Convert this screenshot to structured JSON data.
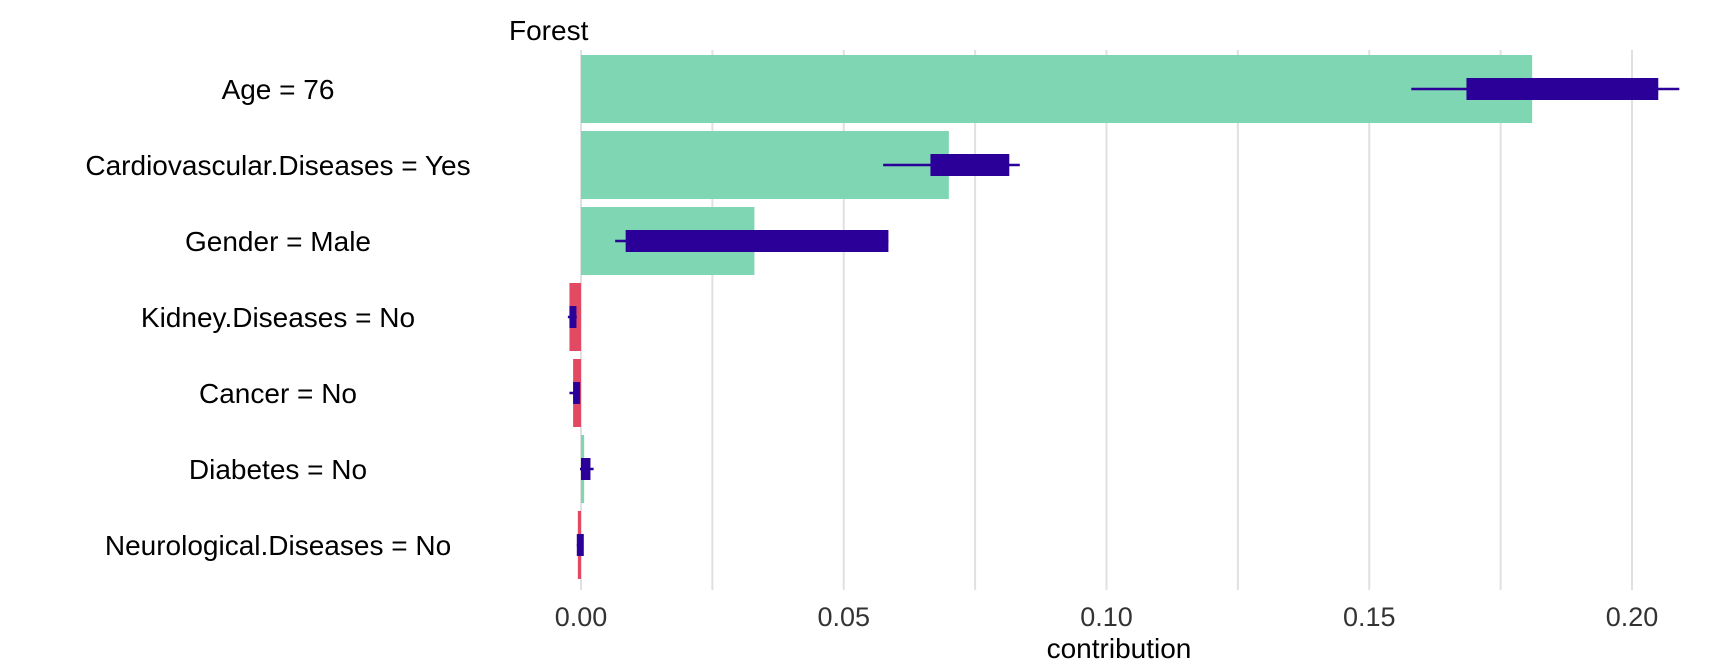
{
  "chart_data": {
    "type": "bar",
    "title": "Forest",
    "xlabel": "contribution",
    "ylabel": "",
    "orientation": "horizontal",
    "xlim": [
      -0.005,
      0.21
    ],
    "xticks": [
      "0.00",
      "0.05",
      "0.10",
      "0.15",
      "0.20"
    ],
    "grid": true,
    "colors": {
      "positive": "#7ED6B2",
      "negative": "#E14A62",
      "interval": "#2A0099",
      "grid": "#e0e0e0"
    },
    "categories": [
      "Age = 76",
      "Cardiovascular.Diseases = Yes",
      "Gender = Male",
      "Kidney.Diseases = No",
      "Cancer = No",
      "Diabetes = No",
      "Neurological.Diseases = No"
    ],
    "values": [
      0.181,
      0.07,
      0.033,
      -0.0022,
      -0.0015,
      0.0006,
      -0.0006
    ],
    "boxes": [
      {
        "whisker_low": 0.158,
        "q1": 0.1685,
        "q3": 0.205,
        "whisker_high": 0.209
      },
      {
        "whisker_low": 0.0575,
        "q1": 0.0665,
        "q3": 0.0815,
        "whisker_high": 0.0835
      },
      {
        "whisker_low": 0.0065,
        "q1": 0.0085,
        "q3": 0.0585,
        "whisker_high": 0.0585
      },
      {
        "whisker_low": -0.0025,
        "q1": -0.0022,
        "q3": -0.0012,
        "whisker_high": -0.0008
      },
      {
        "whisker_low": -0.0022,
        "q1": -0.0015,
        "q3": -0.0005,
        "whisker_high": -0.0002
      },
      {
        "whisker_low": -0.0002,
        "q1": 0.0,
        "q3": 0.0018,
        "whisker_high": 0.0024
      },
      {
        "whisker_low": -0.0008,
        "q1": -0.0008,
        "q3": -0.0001,
        "whisker_high": -0.0001
      }
    ]
  }
}
